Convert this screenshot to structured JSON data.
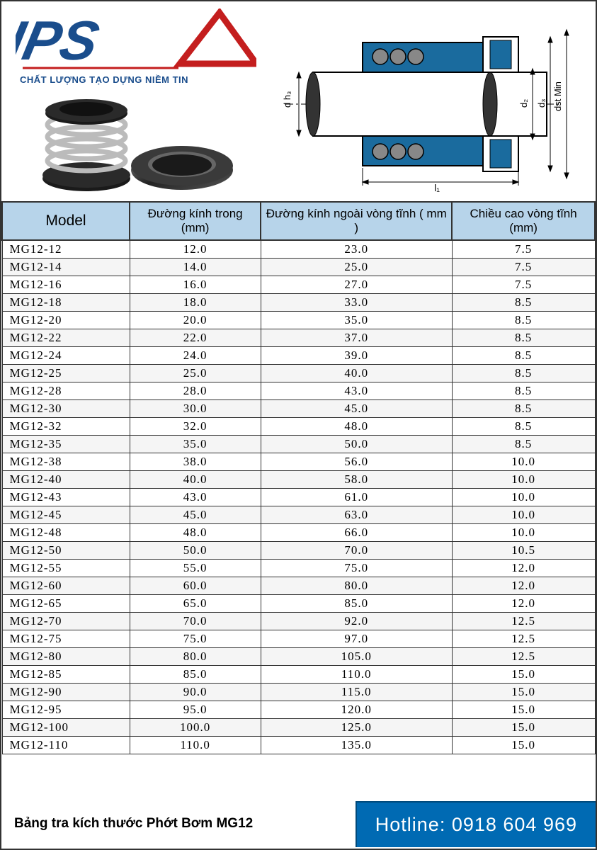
{
  "logo": {
    "text": "IPS",
    "tagline": "CHẤT LƯỢNG TẠO DỰNG NIỀM TIN",
    "text_color": "#1a4d8c",
    "triangle_color": "#c41e1e"
  },
  "diagram": {
    "labels": {
      "dh": "d h₃",
      "d2": "d₂",
      "d3": "d₃",
      "dst": "dst Min",
      "l1": "l₁"
    },
    "body_color": "#1a6b9e",
    "shaft_color": "#ffffff",
    "outline_color": "#000000"
  },
  "table": {
    "header_bg": "#b7d4ea",
    "border_color": "#333333",
    "row_even_bg": "#f5f5f5",
    "row_odd_bg": "#ffffff",
    "columns": [
      "Model",
      "Đường kính trong (mm)",
      "Đường kính ngoài vòng tĩnh ( mm )",
      "Chiều cao vòng tĩnh (mm)"
    ],
    "rows": [
      [
        "MG12-12",
        "12.0",
        "23.0",
        "7.5"
      ],
      [
        "MG12-14",
        "14.0",
        "25.0",
        "7.5"
      ],
      [
        "MG12-16",
        "16.0",
        "27.0",
        "7.5"
      ],
      [
        "MG12-18",
        "18.0",
        "33.0",
        "8.5"
      ],
      [
        "MG12-20",
        "20.0",
        "35.0",
        "8.5"
      ],
      [
        "MG12-22",
        "22.0",
        "37.0",
        "8.5"
      ],
      [
        "MG12-24",
        "24.0",
        "39.0",
        "8.5"
      ],
      [
        "MG12-25",
        "25.0",
        "40.0",
        "8.5"
      ],
      [
        "MG12-28",
        "28.0",
        "43.0",
        "8.5"
      ],
      [
        "MG12-30",
        "30.0",
        "45.0",
        "8.5"
      ],
      [
        "MG12-32",
        "32.0",
        "48.0",
        "8.5"
      ],
      [
        "MG12-35",
        "35.0",
        "50.0",
        "8.5"
      ],
      [
        "MG12-38",
        "38.0",
        "56.0",
        "10.0"
      ],
      [
        "MG12-40",
        "40.0",
        "58.0",
        "10.0"
      ],
      [
        "MG12-43",
        "43.0",
        "61.0",
        "10.0"
      ],
      [
        "MG12-45",
        "45.0",
        "63.0",
        "10.0"
      ],
      [
        "MG12-48",
        "48.0",
        "66.0",
        "10.0"
      ],
      [
        "MG12-50",
        "50.0",
        "70.0",
        "10.5"
      ],
      [
        "MG12-55",
        "55.0",
        "75.0",
        "12.0"
      ],
      [
        "MG12-60",
        "60.0",
        "80.0",
        "12.0"
      ],
      [
        "MG12-65",
        "65.0",
        "85.0",
        "12.0"
      ],
      [
        "MG12-70",
        "70.0",
        "92.0",
        "12.5"
      ],
      [
        "MG12-75",
        "75.0",
        "97.0",
        "12.5"
      ],
      [
        "MG12-80",
        "80.0",
        "105.0",
        "12.5"
      ],
      [
        "MG12-85",
        "85.0",
        "110.0",
        "15.0"
      ],
      [
        "MG12-90",
        "90.0",
        "115.0",
        "15.0"
      ],
      [
        "MG12-95",
        "95.0",
        "120.0",
        "15.0"
      ],
      [
        "MG12-100",
        "100.0",
        "125.0",
        "15.0"
      ],
      [
        "MG12-110",
        "110.0",
        "135.0",
        "15.0"
      ]
    ]
  },
  "footer": {
    "title": "Bảng tra kích thước Phớt Bơm MG12",
    "hotline_label": "Hotline: 0918 604 969",
    "hotline_bg": "#006ab3",
    "hotline_color": "#ffffff"
  }
}
